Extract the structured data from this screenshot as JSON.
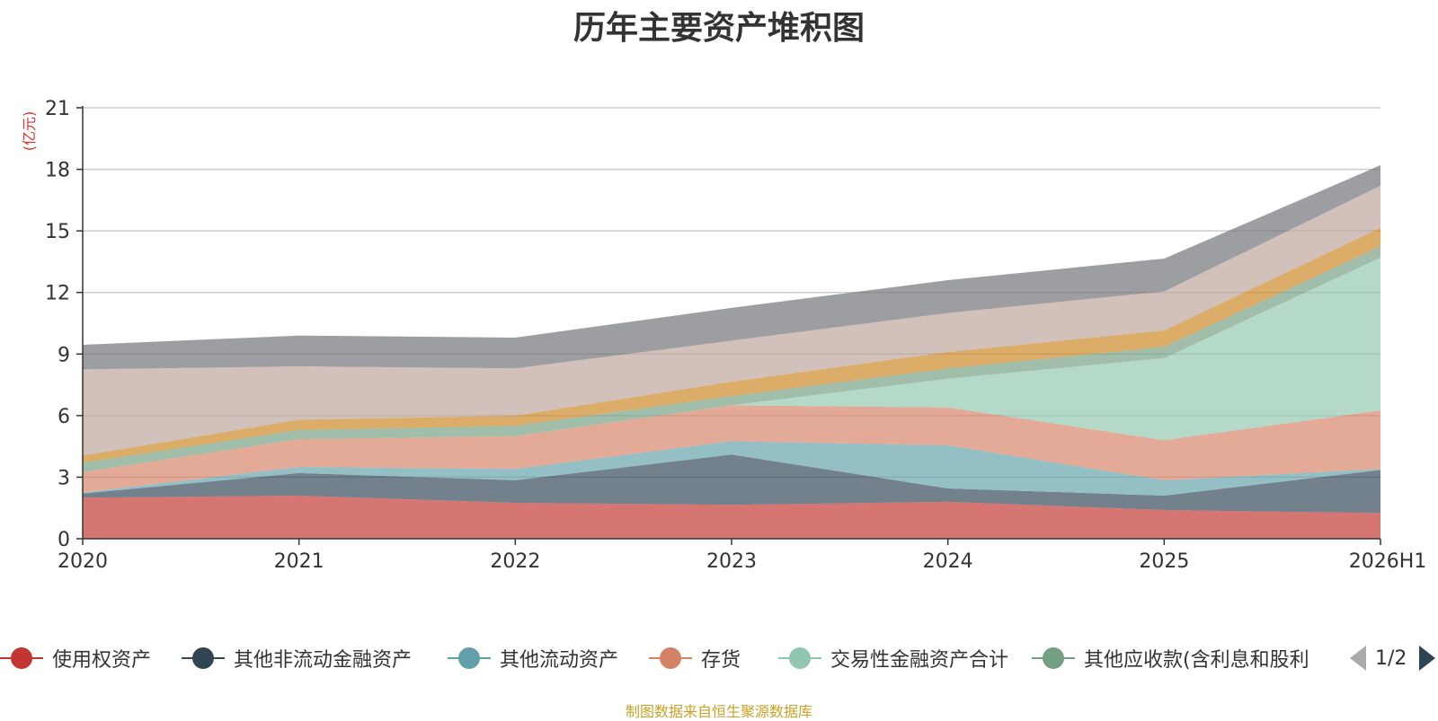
{
  "chart_data": {
    "type": "area",
    "stacked": true,
    "title": "历年主要资产堆积图",
    "ylabel": "(亿元)",
    "xlabel": "",
    "categories": [
      "2020",
      "2021",
      "2022",
      "2023",
      "2024",
      "2025",
      "2026H1"
    ],
    "ylim": [
      0,
      21
    ],
    "yticks": [
      0,
      3,
      6,
      9,
      12,
      15,
      18,
      21
    ],
    "grid": true,
    "legend_position": "bottom",
    "series": [
      {
        "name": "使用权资产",
        "color": "#c23531",
        "values": [
          2.0,
          2.1,
          1.75,
          1.65,
          1.8,
          1.4,
          1.25
        ]
      },
      {
        "name": "其他非流动金融资产",
        "color": "#2f4554",
        "values": [
          0.2,
          1.1,
          1.1,
          2.45,
          0.65,
          0.7,
          2.1
        ]
      },
      {
        "name": "其他流动资产",
        "color": "#61a0a8",
        "values": [
          0.05,
          0.3,
          0.55,
          0.65,
          2.1,
          0.75,
          0.05
        ]
      },
      {
        "name": "存货",
        "color": "#d48265",
        "values": [
          1.0,
          1.35,
          1.6,
          1.75,
          1.85,
          1.95,
          2.85
        ]
      },
      {
        "name": "交易性金融资产合计",
        "color": "#91c7ae",
        "values": [
          0.0,
          0.0,
          0.0,
          0.0,
          1.4,
          4.0,
          7.45
        ]
      },
      {
        "name": "其他应收款(含利息和股利",
        "color": "#749f83",
        "values": [
          0.45,
          0.45,
          0.5,
          0.45,
          0.5,
          0.55,
          0.55
        ]
      },
      {
        "name": "",
        "color": "#ca8622",
        "values": [
          0.35,
          0.5,
          0.5,
          0.7,
          0.8,
          0.8,
          0.9
        ]
      },
      {
        "name": "",
        "color": "#bda29a",
        "values": [
          4.2,
          2.6,
          2.3,
          2.0,
          1.9,
          1.9,
          2.05
        ]
      },
      {
        "name": "",
        "color": "#6e7074",
        "values": [
          1.2,
          1.5,
          1.5,
          1.6,
          1.6,
          1.6,
          1.0
        ]
      }
    ]
  },
  "legend": {
    "page_indicator": "1/2"
  },
  "source_note": "制图数据来自恒生聚源数据库"
}
